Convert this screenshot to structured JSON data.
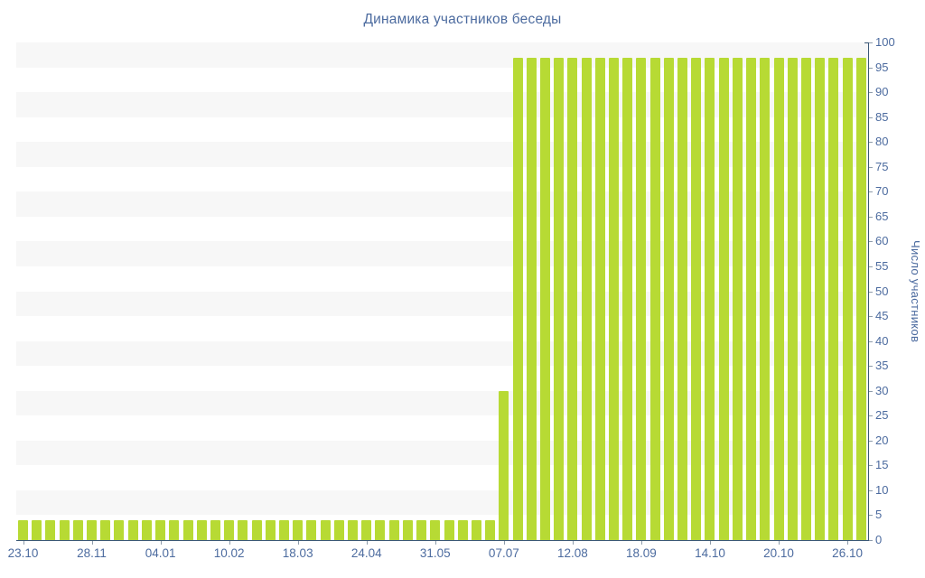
{
  "title": "Динамика участников беседы",
  "chart_data": {
    "type": "bar",
    "title": "Динамика участников беседы",
    "ylabel": "Число участников",
    "xlabel": "",
    "ylim": [
      0,
      100
    ],
    "ytick_step": 5,
    "legend": "none",
    "y_axis_side": "right",
    "grid": "alternating horizontal bands of 5 units",
    "x_labels": [
      "23.10",
      "28.11",
      "04.01",
      "10.02",
      "18.03",
      "24.04",
      "31.05",
      "07.07",
      "12.08",
      "18.09",
      "14.10",
      "20.10",
      "26.10"
    ],
    "label_every_n_bars": 5,
    "values": [
      4,
      4,
      4,
      4,
      4,
      4,
      4,
      4,
      4,
      4,
      4,
      4,
      4,
      4,
      4,
      4,
      4,
      4,
      4,
      4,
      4,
      4,
      4,
      4,
      4,
      4,
      4,
      4,
      4,
      4,
      4,
      4,
      4,
      4,
      4,
      30,
      97,
      97,
      97,
      97,
      97,
      97,
      97,
      97,
      97,
      97,
      97,
      97,
      97,
      97,
      97,
      97,
      97,
      97,
      97,
      97,
      97,
      97,
      97,
      97,
      97,
      97
    ],
    "colors": {
      "bar": "#b7da34",
      "band_gray": "#f7f7f7",
      "band_white": "#ffffff",
      "axis_line": "#3b5876",
      "tick_mark": "#8e9cab",
      "text": "#4c6b9f",
      "background": "#ffffff"
    }
  }
}
